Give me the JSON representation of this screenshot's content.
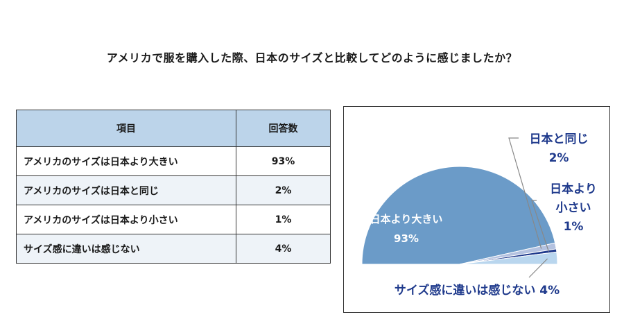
{
  "question": "アメリカで服を購入した際、日本のサイズと比較してどのように感じましたか？",
  "table": {
    "headers": {
      "item": "項目",
      "value": "回答数"
    },
    "rows": [
      {
        "label": "アメリカのサイズは日本より大きい",
        "value": "93%"
      },
      {
        "label": "アメリカのサイズは日本と同じ",
        "value": "2%"
      },
      {
        "label": "アメリカのサイズは日本より小さい",
        "value": "1%"
      },
      {
        "label": "サイズ感に違いは感じない",
        "value": "4%"
      }
    ]
  },
  "chart_data": {
    "type": "pie",
    "style": "semicircle",
    "slices": [
      {
        "label": "日本より大きい",
        "value": 93,
        "value_label": "93%",
        "color": "#6b9bc8"
      },
      {
        "label": "日本と同じ",
        "value": 2,
        "value_label": "2%",
        "color": "#b4c2e0"
      },
      {
        "label": "日本より小さい",
        "value": 1,
        "value_label": "1%",
        "color": "#1f3a8c"
      },
      {
        "label": "サイズ感に違いは感じない",
        "value": 4,
        "value_label": "4%",
        "color": "#b9d6ee"
      }
    ],
    "label_color": "#1f3a8c",
    "legend": "none"
  }
}
